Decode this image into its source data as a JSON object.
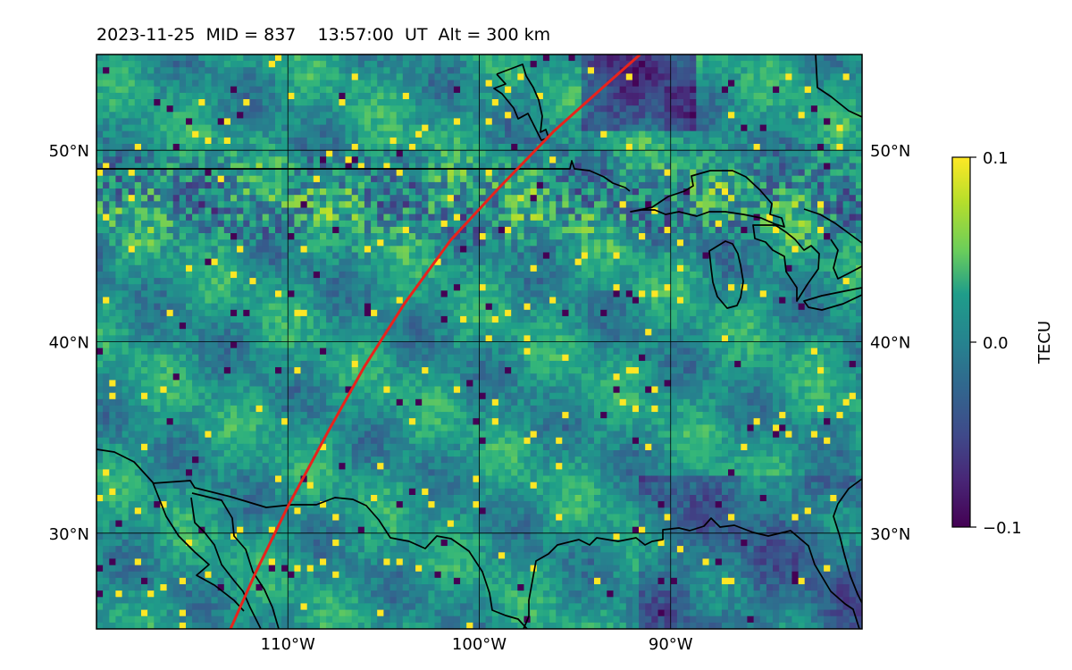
{
  "title": "2023-11-25  MID = 837    13:57:00  UT  Alt = 300 km",
  "map": {
    "projection": "plate carree",
    "lon_range": [
      -120,
      -80
    ],
    "lat_range": [
      25,
      55
    ],
    "gridlines": true,
    "lon_ticks": [
      {
        "lon": -110,
        "label": "110°W"
      },
      {
        "lon": -100,
        "label": "100°W"
      },
      {
        "lon": -90,
        "label": "90°W"
      }
    ],
    "lat_ticks": [
      {
        "lat": 50,
        "label": "50°N"
      },
      {
        "lat": 40,
        "label": "40°N"
      },
      {
        "lat": 30,
        "label": "30°N"
      }
    ],
    "coastline_color": "#000000",
    "track": {
      "color": "#e8231c",
      "points": [
        [
          -113.0,
          25.0
        ],
        [
          -111.7,
          27.9
        ],
        [
          -110.0,
          31.4
        ],
        [
          -107.9,
          35.3
        ],
        [
          -106.0,
          38.7
        ],
        [
          -103.9,
          42.0
        ],
        [
          -101.5,
          45.3
        ],
        [
          -99.0,
          48.0
        ],
        [
          -96.1,
          51.0
        ],
        [
          -93.3,
          53.5
        ],
        [
          -91.6,
          55.0
        ]
      ]
    }
  },
  "colorbar": {
    "label": "TECU",
    "min": -0.1,
    "max": 0.1,
    "ticks": [
      {
        "value": 0.1,
        "label": "0.1"
      },
      {
        "value": 0.0,
        "label": "0.0"
      },
      {
        "value": -0.1,
        "label": "−0.1"
      }
    ],
    "colormap": "viridis"
  }
}
